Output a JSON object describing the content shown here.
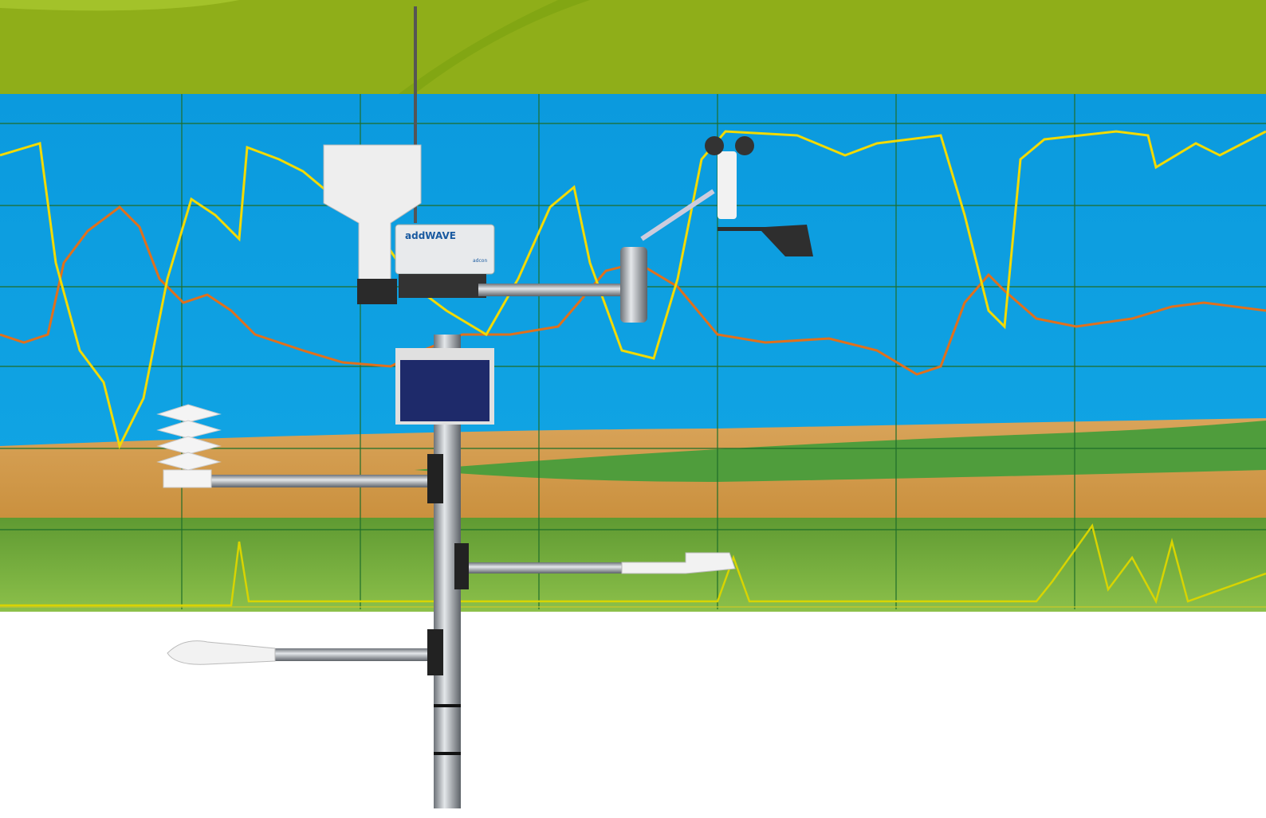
{
  "product": {
    "name": "addWAVE",
    "brand": "adcon"
  }
}
